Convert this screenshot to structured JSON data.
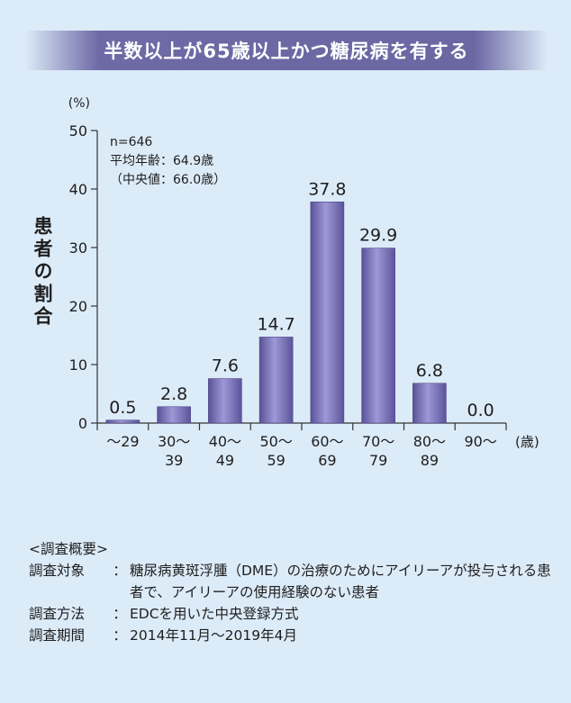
{
  "banner_title": "半数以上が65歳以上かつ糖尿病を有する",
  "stats": [
    "n=646",
    "平均年齢：64.9歳",
    "（中央値：66.0歳）"
  ],
  "survey": {
    "heading": "<調査概要>",
    "rows": [
      {
        "key": "調査対象",
        "value": "糖尿病黄斑浮腫（DME）の治療のためにアイリーアが投与される患者で、アイリーアの使用経験のない患者"
      },
      {
        "key": "調査方法",
        "value": "EDCを用いた中央登録方式"
      },
      {
        "key": "調査期間",
        "value": "2014年11月～2019年4月"
      }
    ]
  },
  "chart_data": {
    "type": "bar",
    "ylabel": "患者の割合",
    "y_unit": "(%)",
    "x_unit": "(歳)",
    "ylim": [
      0,
      50
    ],
    "yticks": [
      0,
      10,
      20,
      30,
      40,
      50
    ],
    "categories": [
      "～29",
      "30～39",
      "40～49",
      "50～59",
      "60～69",
      "70～79",
      "80～89",
      "90～"
    ],
    "category_lines": [
      [
        "～29"
      ],
      [
        "30～",
        "39"
      ],
      [
        "40～",
        "49"
      ],
      [
        "50～",
        "59"
      ],
      [
        "60～",
        "69"
      ],
      [
        "70～",
        "79"
      ],
      [
        "80～",
        "89"
      ],
      [
        "90～"
      ]
    ],
    "values": [
      0.5,
      2.8,
      7.6,
      14.7,
      37.8,
      29.9,
      6.8,
      0.0
    ],
    "value_labels": [
      "0.5",
      "2.8",
      "7.6",
      "14.7",
      "37.8",
      "29.9",
      "6.8",
      "0.0"
    ],
    "grid": false,
    "bar_color": "#6f67b0"
  }
}
